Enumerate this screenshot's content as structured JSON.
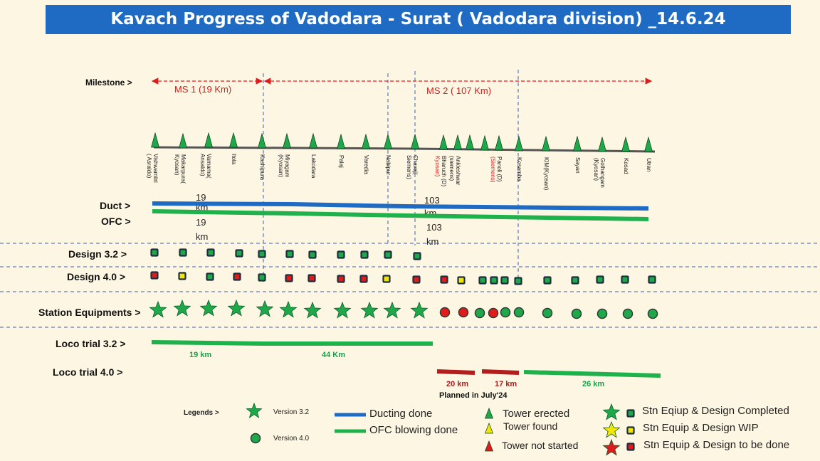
{
  "title": "Kavach Progress of Vadodara - Surat ( Vadodara division) _14.6.24",
  "rows": {
    "milestone": "Milestone >",
    "duct": "Duct >",
    "ofc": "OFC >",
    "design32": "Design 3.2  >",
    "design40": "Design 4.0 >",
    "station_equipments": "Station Equipments >",
    "loco32": "Loco trial 3.2 >",
    "loco40": "Loco trial 4.0 >"
  },
  "milestones": [
    {
      "label": "MS 1 (19 Km)"
    },
    {
      "label": "MS 2 ( 107 Km)"
    }
  ],
  "stations": [
    {
      "name": "Vishwamitri",
      "name2": "( Asraldo)",
      "red2": false
    },
    {
      "name": "Makarpura(",
      "name2": "Kyosan)",
      "red2": false
    },
    {
      "name": "Varnama(",
      "name2": "Ansaldo)",
      "red2": false
    },
    {
      "name": "Itola",
      "name2": "",
      "red2": false
    },
    {
      "name": "Kashipura",
      "name2": "",
      "red2": false
    },
    {
      "name": "Miyagam",
      "name2": "(Kyosan)",
      "red2": false
    },
    {
      "name": "Lakodara",
      "name2": "",
      "red2": false
    },
    {
      "name": "Palaj",
      "name2": "",
      "red2": false
    },
    {
      "name": "Varedia",
      "name2": "",
      "red2": false
    },
    {
      "name": "Nabipur",
      "name2": "",
      "red2": false
    },
    {
      "name": "Chavaj(",
      "name2": "Siemens)",
      "red2": false
    },
    {
      "name": "Bharuch (D)",
      "name2": "Kyosan)",
      "red2": true
    },
    {
      "name": "Ankleshwar",
      "name2": "(siemens)",
      "red2": false
    },
    {
      "name": "",
      "name2": "",
      "red2": false
    },
    {
      "name": "",
      "name2": "",
      "red2": false
    },
    {
      "name": "Panoli (D)",
      "name2": "(Siemens)",
      "red2": true
    },
    {
      "name": "Kosamba",
      "name2": "",
      "red2": false
    },
    {
      "name": "KIM(Kyosan)",
      "name2": "",
      "red2": false
    },
    {
      "name": "Sayan",
      "name2": "",
      "red2": false
    },
    {
      "name": "Gothangam",
      "name2": "(Kyosan)",
      "red2": false
    },
    {
      "name": "Kosad",
      "name2": "",
      "red2": false
    },
    {
      "name": "Utran",
      "name2": "",
      "red2": false
    }
  ],
  "duct_labels": {
    "first": "19",
    "first_unit": "km",
    "second": "103",
    "second_unit": "km"
  },
  "ofc_labels": {
    "first": "19",
    "first_unit": "km",
    "second": "103",
    "second_unit": "km"
  },
  "loco32_labels": [
    "19 km",
    "44 Km"
  ],
  "loco40_labels": [
    "20 km",
    "17 km",
    "26 km"
  ],
  "loco40_note": "Planned in  July'24",
  "design32_status": [
    "done",
    "done",
    "done",
    "done",
    "done",
    "done",
    "done",
    "done",
    "done",
    "done",
    "done"
  ],
  "design40_status": [
    "todo",
    "wip",
    "done",
    "todo",
    "done",
    "todo",
    "todo",
    "todo",
    "todo",
    "wip",
    "todo",
    "todo",
    "wip",
    "done",
    "done",
    "done",
    "done",
    "done",
    "done",
    "done",
    "done",
    "done"
  ],
  "equip_status": [
    "star",
    "star",
    "star",
    "star",
    "star",
    "star",
    "star",
    "star",
    "star",
    "star",
    "star",
    "todo",
    "todo",
    "done",
    "todo",
    "done",
    "done",
    "done",
    "done",
    "done",
    "done",
    "done"
  ],
  "legend": {
    "title": "Legends >",
    "version32": "Version 3.2",
    "version40": "Version 4.0",
    "ducting": "Ducting done",
    "ofc": "OFC blowing done",
    "tower_erected": "Tower erected",
    "tower_found": "Tower found",
    "tower_not_started": "Tower not started",
    "completed": "Stn  Eqiup & Design Completed",
    "wip": "Stn  Equip & Design WIP",
    "todo": "Stn Equip & Design to be done"
  },
  "colors": {
    "banner": "#1f6bc4",
    "duct": "#1f6bc4",
    "ofc": "#1fb14b",
    "done_green": "#1fa84a",
    "red": "#e01b1b",
    "wip_yellow": "#f5e600",
    "loco40_planned": "#b21e1e",
    "text_red": "#d81e1e",
    "text_green": "#17a34a",
    "bg": "#fdf6e3"
  }
}
